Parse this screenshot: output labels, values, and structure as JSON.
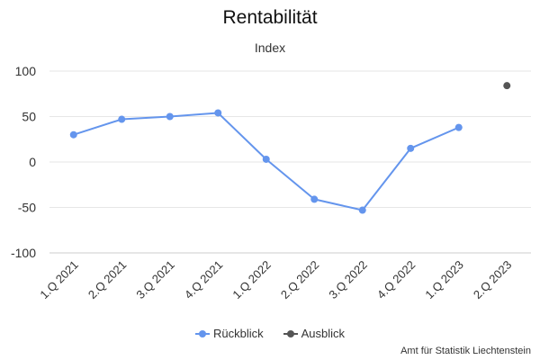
{
  "chart_data": {
    "type": "line",
    "title": "Rentabilität",
    "subtitle": "Index",
    "categories": [
      "1.Q 2021",
      "2.Q 2021",
      "3.Q 2021",
      "4.Q 2021",
      "1.Q 2022",
      "2.Q 2022",
      "3.Q 2022",
      "4.Q 2022",
      "1.Q 2023",
      "2.Q 2023"
    ],
    "series": [
      {
        "name": "Rückblick",
        "color": "#6495ED",
        "values": [
          30,
          47,
          50,
          54,
          3,
          -41,
          -53,
          15,
          38,
          null
        ]
      },
      {
        "name": "Ausblick",
        "color": "#555555",
        "values": [
          null,
          null,
          null,
          null,
          null,
          null,
          null,
          null,
          null,
          84
        ]
      }
    ],
    "xlabel": "",
    "ylabel": "",
    "ylim": [
      -100,
      100
    ],
    "yticks": [
      100,
      50,
      0,
      -50,
      -100
    ],
    "grid": true,
    "legend_position": "bottom"
  },
  "credit": "Amt für Statistik Liechtenstein"
}
